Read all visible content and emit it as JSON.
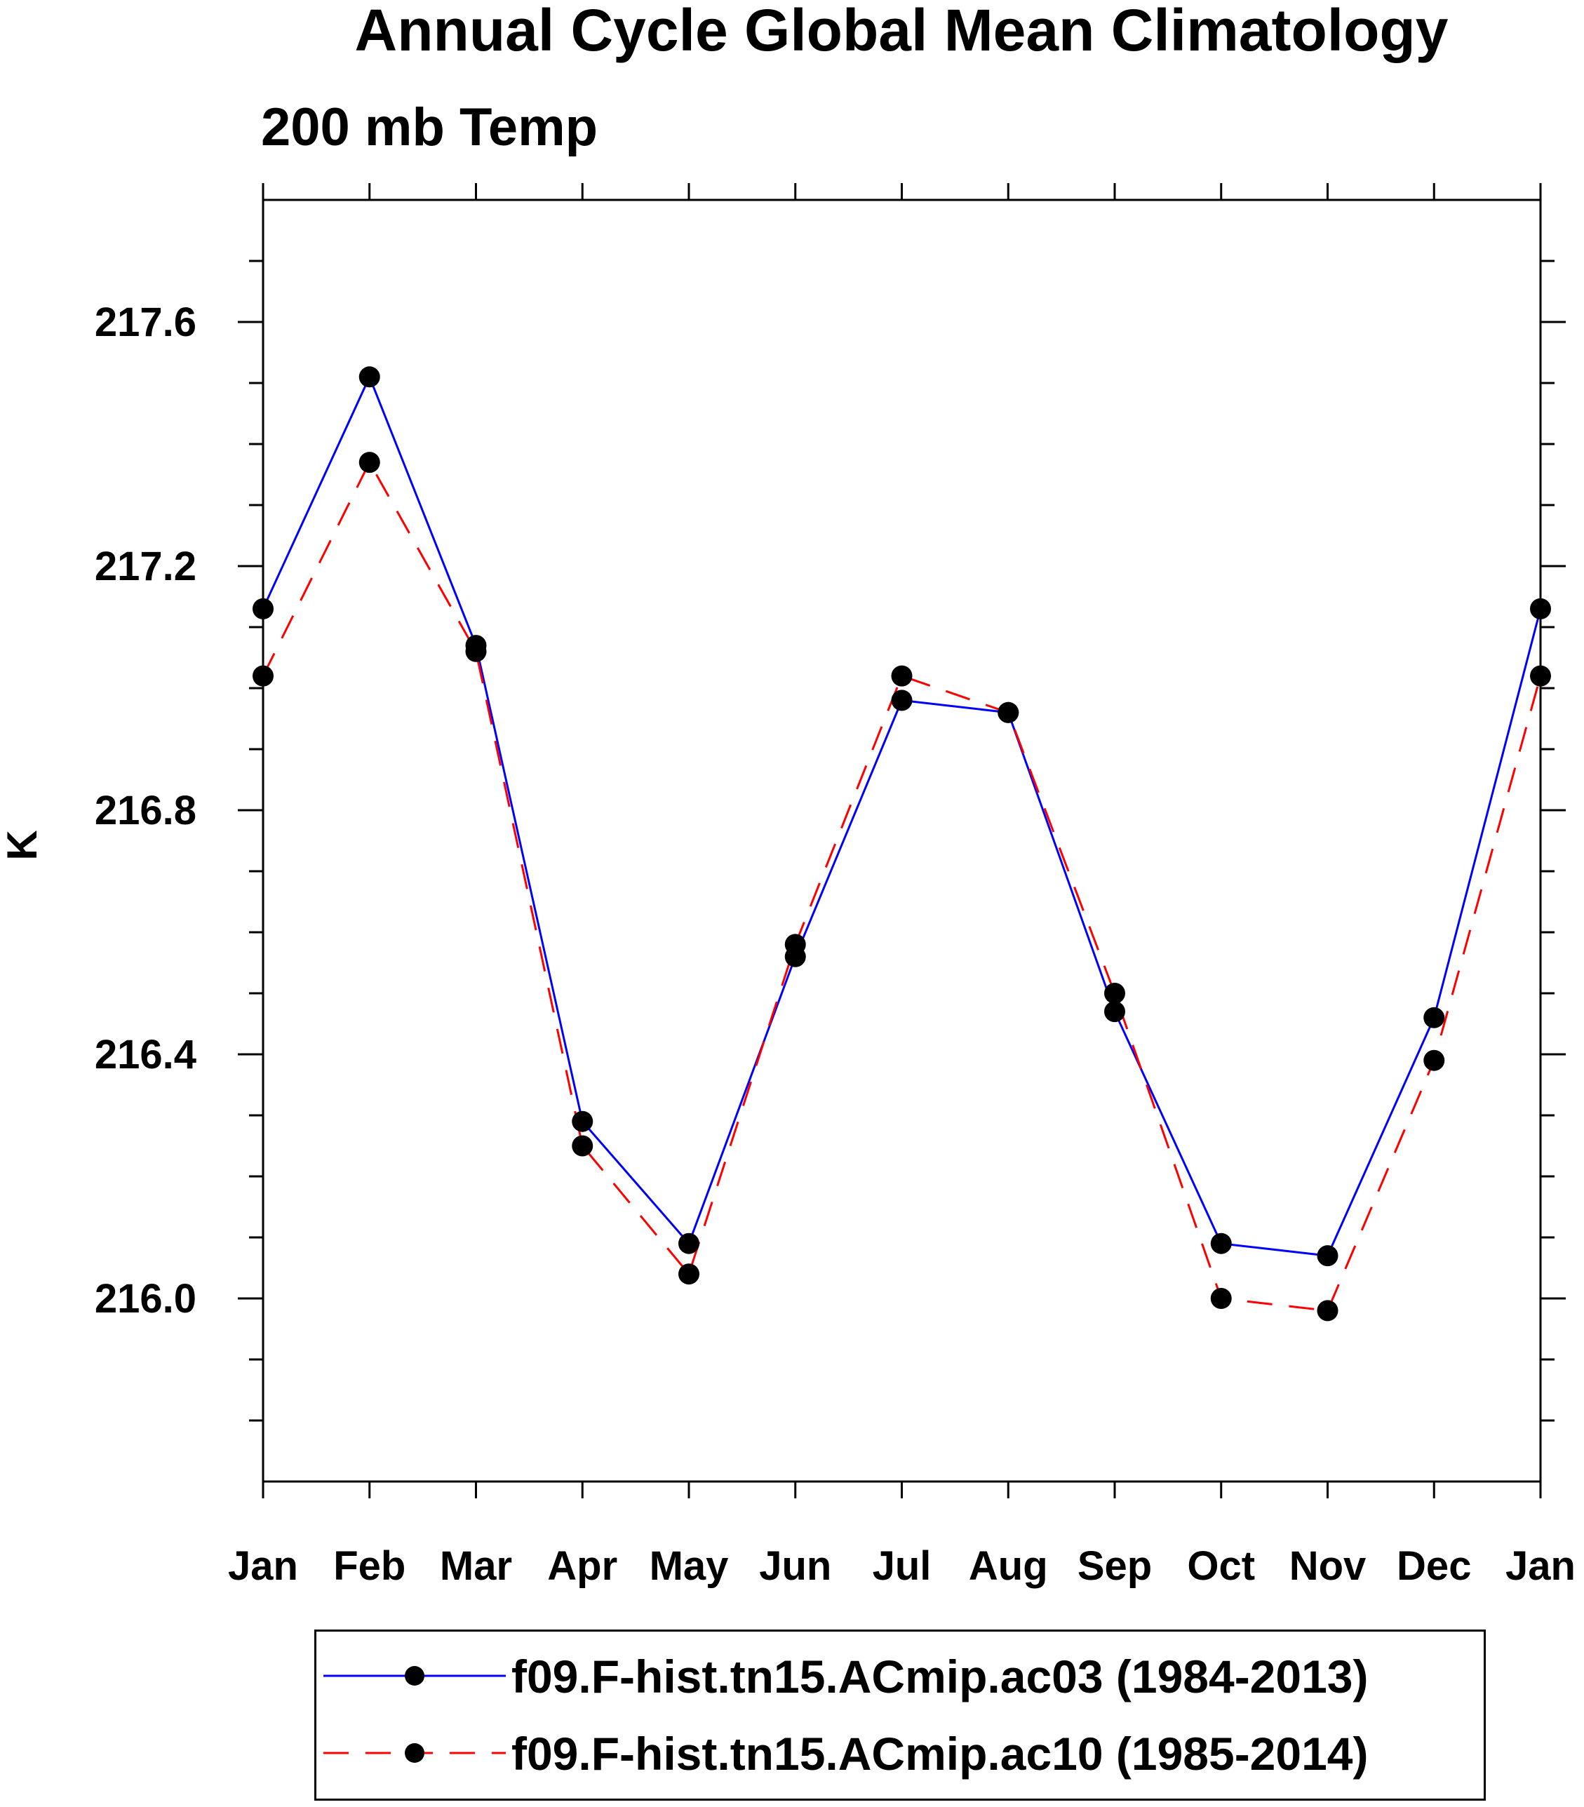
{
  "chart_data": {
    "type": "line",
    "title": "Annual Cycle Global Mean Climatology",
    "subtitle": "200 mb Temp",
    "xlabel": "",
    "ylabel": "K",
    "categories": [
      "Jan",
      "Feb",
      "Mar",
      "Apr",
      "May",
      "Jun",
      "Jul",
      "Aug",
      "Sep",
      "Oct",
      "Nov",
      "Dec",
      "Jan"
    ],
    "ylim": [
      215.7,
      217.8
    ],
    "yticks": [
      216.0,
      216.4,
      216.8,
      217.2,
      217.6
    ],
    "ytick_labels": [
      "216.0",
      "216.4",
      "216.8",
      "217.2",
      "217.6"
    ],
    "grid": false,
    "legend_position": "bottom",
    "series": [
      {
        "name": "f09.F-hist.tn15.ACmip.ac03 (1984-2013)",
        "color": "#0000ff",
        "dash": "solid",
        "marker": "circle",
        "values": [
          217.13,
          217.51,
          217.07,
          216.29,
          216.09,
          216.56,
          216.98,
          216.96,
          216.47,
          216.09,
          216.07,
          216.46,
          217.13
        ]
      },
      {
        "name": "f09.F-hist.tn15.ACmip.ac10 (1985-2014)",
        "color": "#ff0000",
        "dash": "dashed",
        "marker": "circle",
        "values": [
          217.02,
          217.37,
          217.06,
          216.25,
          216.04,
          216.58,
          217.02,
          216.96,
          216.5,
          216.0,
          215.98,
          216.39,
          217.02
        ]
      }
    ]
  }
}
